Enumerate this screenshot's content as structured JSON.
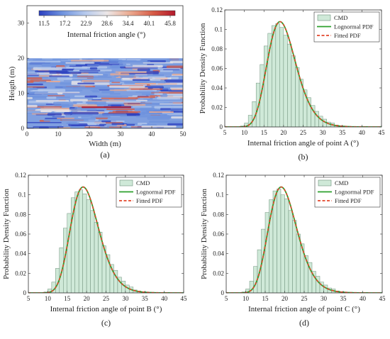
{
  "chart_data": [
    {
      "panel": "a",
      "panel_label": "(a)",
      "type": "heatmap",
      "xlabel": "Width (m)",
      "ylabel": "Heigth (m)",
      "xlim": [
        0,
        50
      ],
      "ylim": [
        0,
        35
      ],
      "field_extent": {
        "width": [
          0,
          50
        ],
        "height": [
          0,
          20
        ]
      },
      "x_ticks": [
        0,
        10,
        20,
        30,
        40,
        50
      ],
      "y_ticks": [
        0,
        10,
        20,
        30
      ],
      "colorbar": {
        "label": "Internal friction angle (°)",
        "ticks": [
          "11.5",
          "17.2",
          "22.9",
          "28.6",
          "34.4",
          "40.1",
          "45.8"
        ],
        "range": [
          11.5,
          45.8
        ],
        "colors": [
          "#2b3fbf",
          "#6f93de",
          "#b6c9ec",
          "#ece7e7",
          "#eba98f",
          "#d65b46",
          "#b2182b"
        ]
      }
    },
    {
      "panel": "b",
      "panel_label": "(b)",
      "type": "bar",
      "xlabel": "Internal friction angle of point A (°)",
      "ylabel": "Probability Density Function",
      "xlim": [
        5,
        45
      ],
      "ylim": [
        0,
        0.12
      ],
      "x_ticks": [
        "5",
        "10",
        "15",
        "20",
        "25",
        "30",
        "35",
        "40",
        "45"
      ],
      "y_ticks": [
        "0",
        "0.02",
        "0.04",
        "0.06",
        "0.08",
        "0.1",
        "0.12"
      ],
      "bin_width": 1,
      "bin_left": [
        9,
        10,
        11,
        12,
        13,
        14,
        15,
        16,
        17,
        18,
        19,
        20,
        21,
        22,
        23,
        24,
        25,
        26,
        27,
        28,
        29,
        30,
        31,
        32,
        33,
        34,
        35,
        36
      ],
      "hist": [
        0.001,
        0.004,
        0.012,
        0.026,
        0.045,
        0.064,
        0.083,
        0.096,
        0.104,
        0.106,
        0.102,
        0.094,
        0.085,
        0.073,
        0.061,
        0.049,
        0.038,
        0.03,
        0.022,
        0.016,
        0.011,
        0.008,
        0.005,
        0.004,
        0.002,
        0.001,
        0.001,
        0.0005
      ],
      "series": [
        {
          "name": "CMD",
          "kind": "histogram",
          "color": "#cfe9d8"
        },
        {
          "name": "Lognormal PDF",
          "kind": "line",
          "color": "#2ca02c",
          "median": 19.8,
          "sigma": 0.19
        },
        {
          "name": "Fitted PDF",
          "kind": "dashed",
          "color": "#e2452a",
          "median": 19.8,
          "sigma": 0.19
        }
      ],
      "legend": "top-right"
    },
    {
      "panel": "c",
      "panel_label": "(c)",
      "type": "bar",
      "xlabel": "Internal friction angle of point B (°)",
      "ylabel": "Probability Density Function",
      "xlim": [
        5,
        45
      ],
      "ylim": [
        0,
        0.12
      ],
      "x_ticks": [
        "5",
        "10",
        "15",
        "20",
        "25",
        "30",
        "35",
        "40",
        "45"
      ],
      "y_ticks": [
        "0",
        "0.02",
        "0.04",
        "0.06",
        "0.08",
        "0.1",
        "0.12"
      ],
      "bin_width": 1,
      "bin_left": [
        9,
        10,
        11,
        12,
        13,
        14,
        15,
        16,
        17,
        18,
        19,
        20,
        21,
        22,
        23,
        24,
        25,
        26,
        27,
        28,
        29,
        30,
        31,
        32,
        33,
        34,
        35,
        36
      ],
      "hist": [
        0.001,
        0.004,
        0.011,
        0.025,
        0.046,
        0.066,
        0.081,
        0.097,
        0.103,
        0.105,
        0.101,
        0.095,
        0.084,
        0.072,
        0.062,
        0.048,
        0.039,
        0.029,
        0.023,
        0.016,
        0.012,
        0.008,
        0.006,
        0.003,
        0.002,
        0.001,
        0.001,
        0.0005
      ],
      "series": [
        {
          "name": "CMD",
          "kind": "histogram",
          "color": "#cfe9d8"
        },
        {
          "name": "Lognormal PDF",
          "kind": "line",
          "color": "#2ca02c",
          "median": 19.8,
          "sigma": 0.19
        },
        {
          "name": "Fitted PDF",
          "kind": "dashed",
          "color": "#e2452a",
          "median": 19.8,
          "sigma": 0.19
        }
      ],
      "legend": "top-right"
    },
    {
      "panel": "d",
      "panel_label": "(d)",
      "type": "bar",
      "xlabel": "Internal friction angle of point C (°)",
      "ylabel": "Probability Density Function",
      "xlim": [
        5,
        45
      ],
      "ylim": [
        0,
        0.12
      ],
      "x_ticks": [
        "5",
        "10",
        "15",
        "20",
        "25",
        "30",
        "35",
        "40",
        "45"
      ],
      "y_ticks": [
        "0",
        "0.02",
        "0.04",
        "0.06",
        "0.08",
        "0.1",
        "0.12"
      ],
      "bin_width": 1,
      "bin_left": [
        9,
        10,
        11,
        12,
        13,
        14,
        15,
        16,
        17,
        18,
        19,
        20,
        21,
        22,
        23,
        24,
        25,
        26,
        27,
        28,
        29,
        30,
        31,
        32,
        33,
        34,
        35,
        36
      ],
      "hist": [
        0.001,
        0.004,
        0.012,
        0.027,
        0.044,
        0.065,
        0.082,
        0.095,
        0.104,
        0.106,
        0.1,
        0.096,
        0.084,
        0.074,
        0.06,
        0.05,
        0.038,
        0.031,
        0.022,
        0.017,
        0.011,
        0.008,
        0.005,
        0.004,
        0.002,
        0.001,
        0.001,
        0.0005
      ],
      "series": [
        {
          "name": "CMD",
          "kind": "histogram",
          "color": "#cfe9d8"
        },
        {
          "name": "Lognormal PDF",
          "kind": "line",
          "color": "#2ca02c",
          "median": 19.8,
          "sigma": 0.19
        },
        {
          "name": "Fitted PDF",
          "kind": "dashed",
          "color": "#e2452a",
          "median": 19.8,
          "sigma": 0.19
        }
      ],
      "legend": "top-right"
    }
  ]
}
